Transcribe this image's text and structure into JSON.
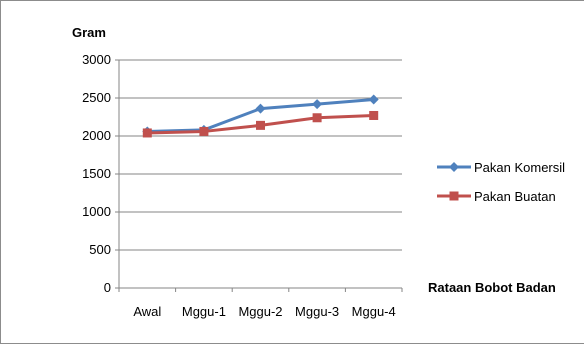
{
  "chart_data": {
    "type": "line",
    "ylabel": "Gram",
    "xlabel": "Rataan Bobot Badan",
    "categories": [
      "Awal",
      "Mggu-1",
      "Mggu-2",
      "Mggu-3",
      "Mggu-4"
    ],
    "yticks": [
      "0",
      "500",
      "1000",
      "1500",
      "2000",
      "2500",
      "3000"
    ],
    "ylim": [
      0,
      3000
    ],
    "grid": true,
    "legend_position": "right",
    "series": [
      {
        "name": "Pakan Komersil",
        "values": [
          2060,
          2080,
          2360,
          2420,
          2480
        ],
        "color": "#4f81bd",
        "marker": "diamond"
      },
      {
        "name": "Pakan Buatan",
        "values": [
          2040,
          2060,
          2140,
          2240,
          2270
        ],
        "color": "#c0504d",
        "marker": "square"
      }
    ]
  }
}
